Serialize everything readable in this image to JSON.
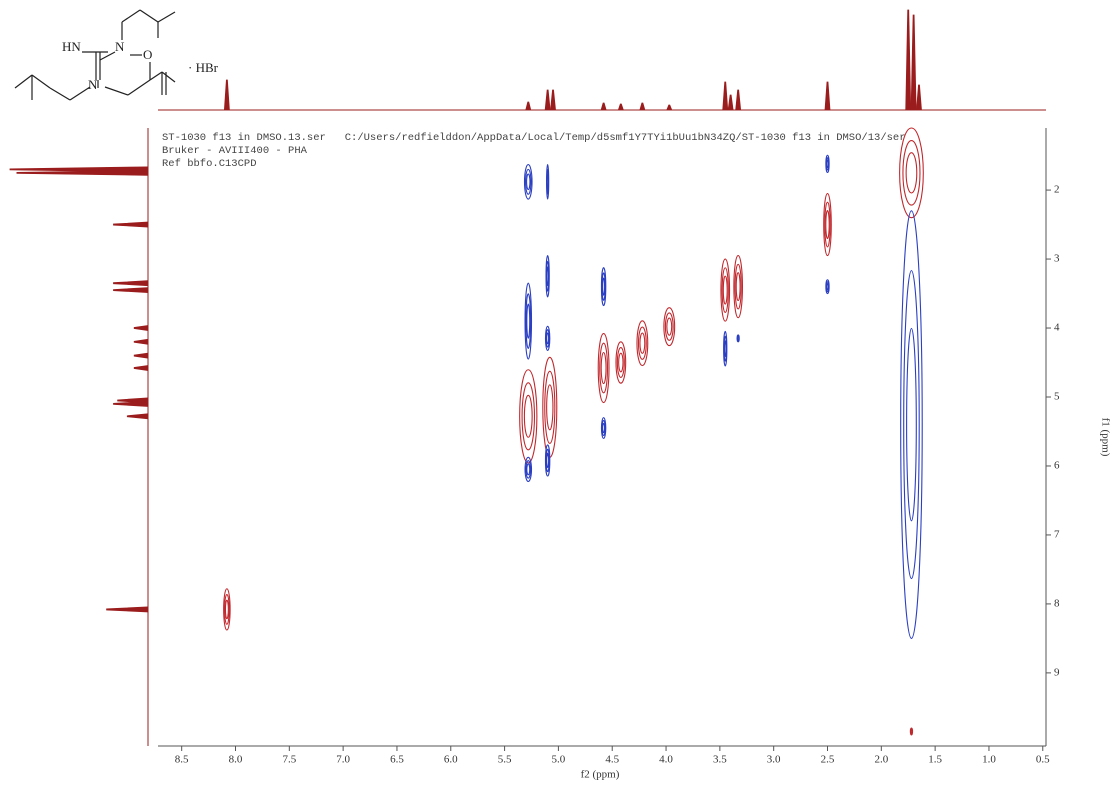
{
  "structure": {
    "labels": [
      "HN",
      "N",
      "N",
      "O"
    ],
    "salt": "· HBr"
  },
  "chart_data": {
    "type": "contour2d",
    "header": [
      "ST-1030 f13 in DMSO.13.ser   C:/Users/redfielddon/AppData/Local/Temp/d5smf1Y7TYi1bUu1bN34ZQ/ST-1030 f13 in DMSO/13/ser",
      "Bruker - AVIII400 - PHA",
      "Ref bbfo.C13CPD"
    ],
    "xlabel": "f2 (ppm)",
    "ylabel": "f1 (ppm)",
    "xlim": [
      8.72,
      0.47
    ],
    "ylim": [
      1.1,
      10.06
    ],
    "xticks": [
      8.5,
      {
        "value": 8,
        "label": "8.0"
      },
      7.5,
      {
        "value": 7,
        "label": "7.0"
      },
      6.5,
      {
        "value": 6,
        "label": "6.0"
      },
      5.5,
      {
        "value": 5,
        "label": "5.0"
      },
      4.5,
      {
        "value": 4,
        "label": "4.0"
      },
      3.5,
      {
        "value": 3,
        "label": "3.0"
      },
      2.5,
      {
        "value": 2,
        "label": "2.0"
      },
      1.5,
      {
        "value": 1,
        "label": "1.0"
      },
      0.5
    ],
    "yticks": [
      2,
      3,
      4,
      5,
      6,
      7,
      8,
      9
    ],
    "peaks": {
      "positive": {
        "color": "#c0282d",
        "f2": [
          1.72,
          2.5,
          3.45,
          3.33,
          3.97,
          4.22,
          4.42,
          4.58,
          5.08,
          5.28,
          8.08,
          1.72
        ],
        "f1": [
          1.75,
          2.5,
          3.45,
          3.4,
          3.98,
          4.22,
          4.5,
          4.58,
          5.15,
          5.28,
          8.08,
          9.85
        ],
        "f2_width": [
          0.22,
          0.07,
          0.08,
          0.08,
          0.1,
          0.1,
          0.09,
          0.1,
          0.13,
          0.16,
          0.06,
          0.02
        ],
        "f1_width": [
          1.3,
          0.9,
          0.9,
          0.9,
          0.55,
          0.65,
          0.6,
          1.0,
          1.45,
          1.35,
          0.6,
          0.1
        ]
      },
      "negative": {
        "color": "#2b3fc2",
        "f2": [
          5.28,
          5.1,
          2.5,
          2.5,
          3.45,
          3.33,
          4.58,
          4.58,
          5.28,
          5.1,
          5.1,
          5.28,
          5.1,
          1.72
        ],
        "f1": [
          1.88,
          1.88,
          1.62,
          3.4,
          4.3,
          4.15,
          3.4,
          5.45,
          3.9,
          3.25,
          4.15,
          6.05,
          5.92,
          5.4
        ],
        "f2_width": [
          0.07,
          0.02,
          0.03,
          0.03,
          0.03,
          0.02,
          0.04,
          0.04,
          0.06,
          0.03,
          0.04,
          0.06,
          0.04,
          0.2
        ],
        "f1_width": [
          0.5,
          0.5,
          0.25,
          0.2,
          0.5,
          0.1,
          0.55,
          0.3,
          1.1,
          0.6,
          0.35,
          0.35,
          0.45,
          6.2
        ]
      }
    },
    "projection_f2": {
      "color": "#9b1c1c",
      "ppm": [
        8.08,
        5.28,
        5.1,
        5.05,
        4.58,
        4.42,
        4.22,
        3.97,
        3.45,
        3.4,
        3.33,
        2.5,
        1.75,
        1.7,
        1.65
      ],
      "intensity": [
        30,
        8,
        20,
        20,
        7,
        6,
        7,
        5,
        28,
        15,
        20,
        28,
        100,
        95,
        25
      ]
    },
    "projection_f1": {
      "color": "#9b1c1c",
      "ppm": [
        1.7,
        1.75,
        2.5,
        3.35,
        3.45,
        4.0,
        4.2,
        4.4,
        4.58,
        5.05,
        5.1,
        5.28,
        8.08
      ],
      "intensity": [
        100,
        95,
        25,
        25,
        25,
        10,
        10,
        10,
        10,
        22,
        25,
        15,
        30
      ]
    }
  }
}
